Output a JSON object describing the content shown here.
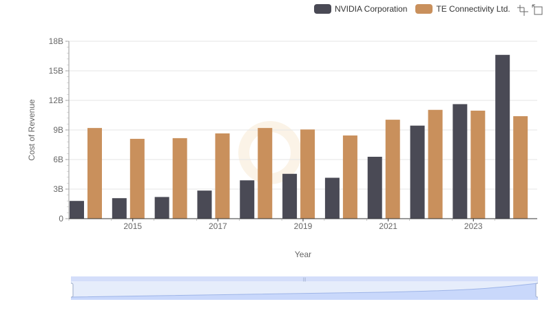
{
  "legend": [
    {
      "name": "NVIDIA Corporation",
      "color": "#4a4a55"
    },
    {
      "name": "TE Connectivity Ltd.",
      "color": "#c9905c"
    }
  ],
  "toolbox": {
    "icons": [
      "zoom-icon",
      "zoom-reset-icon"
    ]
  },
  "chart_data": {
    "type": "bar",
    "categories": [
      "2014",
      "2015",
      "2016",
      "2017",
      "2018",
      "2019",
      "2020",
      "2021",
      "2022",
      "2023",
      "2024"
    ],
    "x_tick_labels": [
      "2015",
      "2017",
      "2019",
      "2021",
      "2023"
    ],
    "series": [
      {
        "name": "NVIDIA Corporation",
        "color": "#4a4a55",
        "values": [
          1.8,
          2.08,
          2.2,
          2.85,
          3.89,
          4.55,
          4.15,
          6.28,
          9.44,
          11.62,
          16.62
        ]
      },
      {
        "name": "TE Connectivity Ltd.",
        "color": "#c9905c",
        "values": [
          9.2,
          8.1,
          8.17,
          8.65,
          9.2,
          9.05,
          8.44,
          10.04,
          11.04,
          10.96,
          10.4
        ]
      }
    ],
    "xlabel": "Year",
    "ylabel": "Cost of Revenue",
    "ylim": [
      0,
      18
    ],
    "y_ticks": [
      0,
      3,
      6,
      9,
      12,
      15,
      18
    ],
    "y_tick_labels": [
      "0",
      "3B",
      "6B",
      "9B",
      "12B",
      "15B",
      "18B"
    ],
    "grid": true,
    "legend_position": "top-right"
  }
}
